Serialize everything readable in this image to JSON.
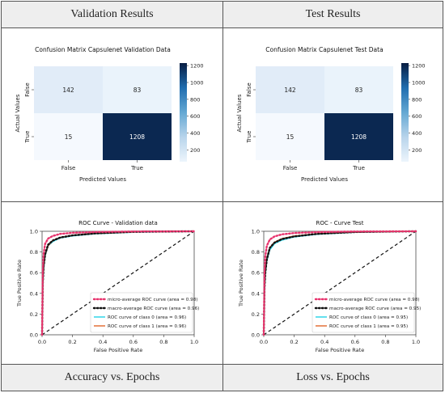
{
  "headers": {
    "validation": "Validation Results",
    "test": "Test Results",
    "accuracy": "Accuracy vs. Epochs",
    "loss": "Loss vs. Epochs"
  },
  "chart_data": [
    {
      "type": "heatmap",
      "title": "Confusion Matrix Capsulenet Validation Data",
      "xlabel": "Predicted Values",
      "ylabel": "Actual Values",
      "x_categories": [
        "False",
        "True"
      ],
      "y_categories": [
        "False",
        "True"
      ],
      "values": [
        [
          142,
          83
        ],
        [
          15,
          1208
        ]
      ],
      "colorbar": {
        "ticks": [
          200,
          400,
          600,
          800,
          1000,
          1200
        ],
        "colormap": "Blues"
      }
    },
    {
      "type": "heatmap",
      "title": "Confusion Matrix Capsulenet Test Data",
      "xlabel": "Predicted Values",
      "ylabel": "Actual Values",
      "x_categories": [
        "False",
        "True"
      ],
      "y_categories": [
        "False",
        "True"
      ],
      "values": [
        [
          142,
          83
        ],
        [
          15,
          1208
        ]
      ],
      "colorbar": {
        "ticks": [
          200,
          400,
          600,
          800,
          1000,
          1200
        ],
        "colormap": "Blues"
      }
    },
    {
      "type": "line",
      "title": "ROC Curve - Validation data",
      "xlabel": "False Positive Rate",
      "ylabel": "True Positive Rate",
      "xlim": [
        0,
        1
      ],
      "ylim": [
        0,
        1
      ],
      "ticks": [
        0.0,
        0.2,
        0.4,
        0.6,
        0.8,
        1.0
      ],
      "legend": "lower-right",
      "series": [
        {
          "name": "micro-average ROC curve (area = 0.98)",
          "color": "#e8336d",
          "style": "dotted",
          "x": [
            0,
            0.005,
            0.01,
            0.02,
            0.04,
            0.07,
            0.12,
            0.2,
            0.35,
            0.6,
            1.0
          ],
          "y": [
            0,
            0.62,
            0.78,
            0.88,
            0.93,
            0.955,
            0.975,
            0.985,
            0.993,
            0.998,
            1.0
          ]
        },
        {
          "name": "macro-average ROC curve (area = 0.96)",
          "color": "#111111",
          "style": "dotted",
          "x": [
            0,
            0.005,
            0.01,
            0.02,
            0.04,
            0.07,
            0.12,
            0.2,
            0.35,
            0.6,
            1.0
          ],
          "y": [
            0,
            0.5,
            0.66,
            0.78,
            0.87,
            0.91,
            0.94,
            0.96,
            0.98,
            0.995,
            1.0
          ]
        },
        {
          "name": "ROC curve of class 0 (area = 0.96)",
          "color": "#22d3e6",
          "style": "solid",
          "x": [
            0,
            0.005,
            0.01,
            0.02,
            0.04,
            0.07,
            0.12,
            0.2,
            0.35,
            0.6,
            1.0
          ],
          "y": [
            0,
            0.48,
            0.63,
            0.76,
            0.86,
            0.9,
            0.935,
            0.955,
            0.975,
            0.99,
            1.0
          ]
        },
        {
          "name": "ROC curve of class 1 (area = 0.96)",
          "color": "#e0662a",
          "style": "solid",
          "x": [
            0,
            0.005,
            0.01,
            0.02,
            0.04,
            0.07,
            0.12,
            0.2,
            0.35,
            0.6,
            1.0
          ],
          "y": [
            0,
            0.5,
            0.65,
            0.77,
            0.86,
            0.91,
            0.94,
            0.96,
            0.978,
            0.992,
            1.0
          ]
        }
      ],
      "reference_line": {
        "color": "#111111",
        "style": "dashed",
        "x": [
          0,
          1
        ],
        "y": [
          0,
          1
        ]
      }
    },
    {
      "type": "line",
      "title": "ROC - Curve Test",
      "xlabel": "False Positive Rate",
      "ylabel": "True Positive Rate",
      "xlim": [
        0,
        1
      ],
      "ylim": [
        0,
        1
      ],
      "ticks": [
        0.0,
        0.2,
        0.4,
        0.6,
        0.8,
        1.0
      ],
      "legend": "lower-right",
      "series": [
        {
          "name": "micro-average ROC curve (area = 0.98)",
          "color": "#e8336d",
          "style": "dotted",
          "x": [
            0,
            0.005,
            0.01,
            0.02,
            0.04,
            0.07,
            0.12,
            0.2,
            0.35,
            0.6,
            1.0
          ],
          "y": [
            0,
            0.6,
            0.76,
            0.86,
            0.92,
            0.95,
            0.97,
            0.983,
            0.992,
            0.998,
            1.0
          ]
        },
        {
          "name": "macro-average ROC curve (area = 0.95)",
          "color": "#111111",
          "style": "dotted",
          "x": [
            0,
            0.005,
            0.01,
            0.02,
            0.04,
            0.07,
            0.12,
            0.2,
            0.35,
            0.6,
            1.0
          ],
          "y": [
            0,
            0.45,
            0.6,
            0.73,
            0.84,
            0.89,
            0.925,
            0.95,
            0.975,
            0.993,
            1.0
          ]
        },
        {
          "name": "ROC curve of class 0 (area = 0.95)",
          "color": "#22d3e6",
          "style": "solid",
          "x": [
            0,
            0.005,
            0.01,
            0.02,
            0.04,
            0.07,
            0.12,
            0.2,
            0.35,
            0.6,
            1.0
          ],
          "y": [
            0,
            0.43,
            0.58,
            0.71,
            0.82,
            0.88,
            0.915,
            0.945,
            0.97,
            0.99,
            1.0
          ]
        },
        {
          "name": "ROC curve of class 1 (area = 0.95)",
          "color": "#e0662a",
          "style": "solid",
          "x": [
            0,
            0.005,
            0.01,
            0.02,
            0.04,
            0.07,
            0.12,
            0.2,
            0.35,
            0.6,
            1.0
          ],
          "y": [
            0,
            0.46,
            0.61,
            0.74,
            0.84,
            0.895,
            0.93,
            0.955,
            0.975,
            0.992,
            1.0
          ]
        }
      ],
      "reference_line": {
        "color": "#111111",
        "style": "dashed",
        "x": [
          0,
          1
        ],
        "y": [
          0,
          1
        ]
      }
    }
  ]
}
